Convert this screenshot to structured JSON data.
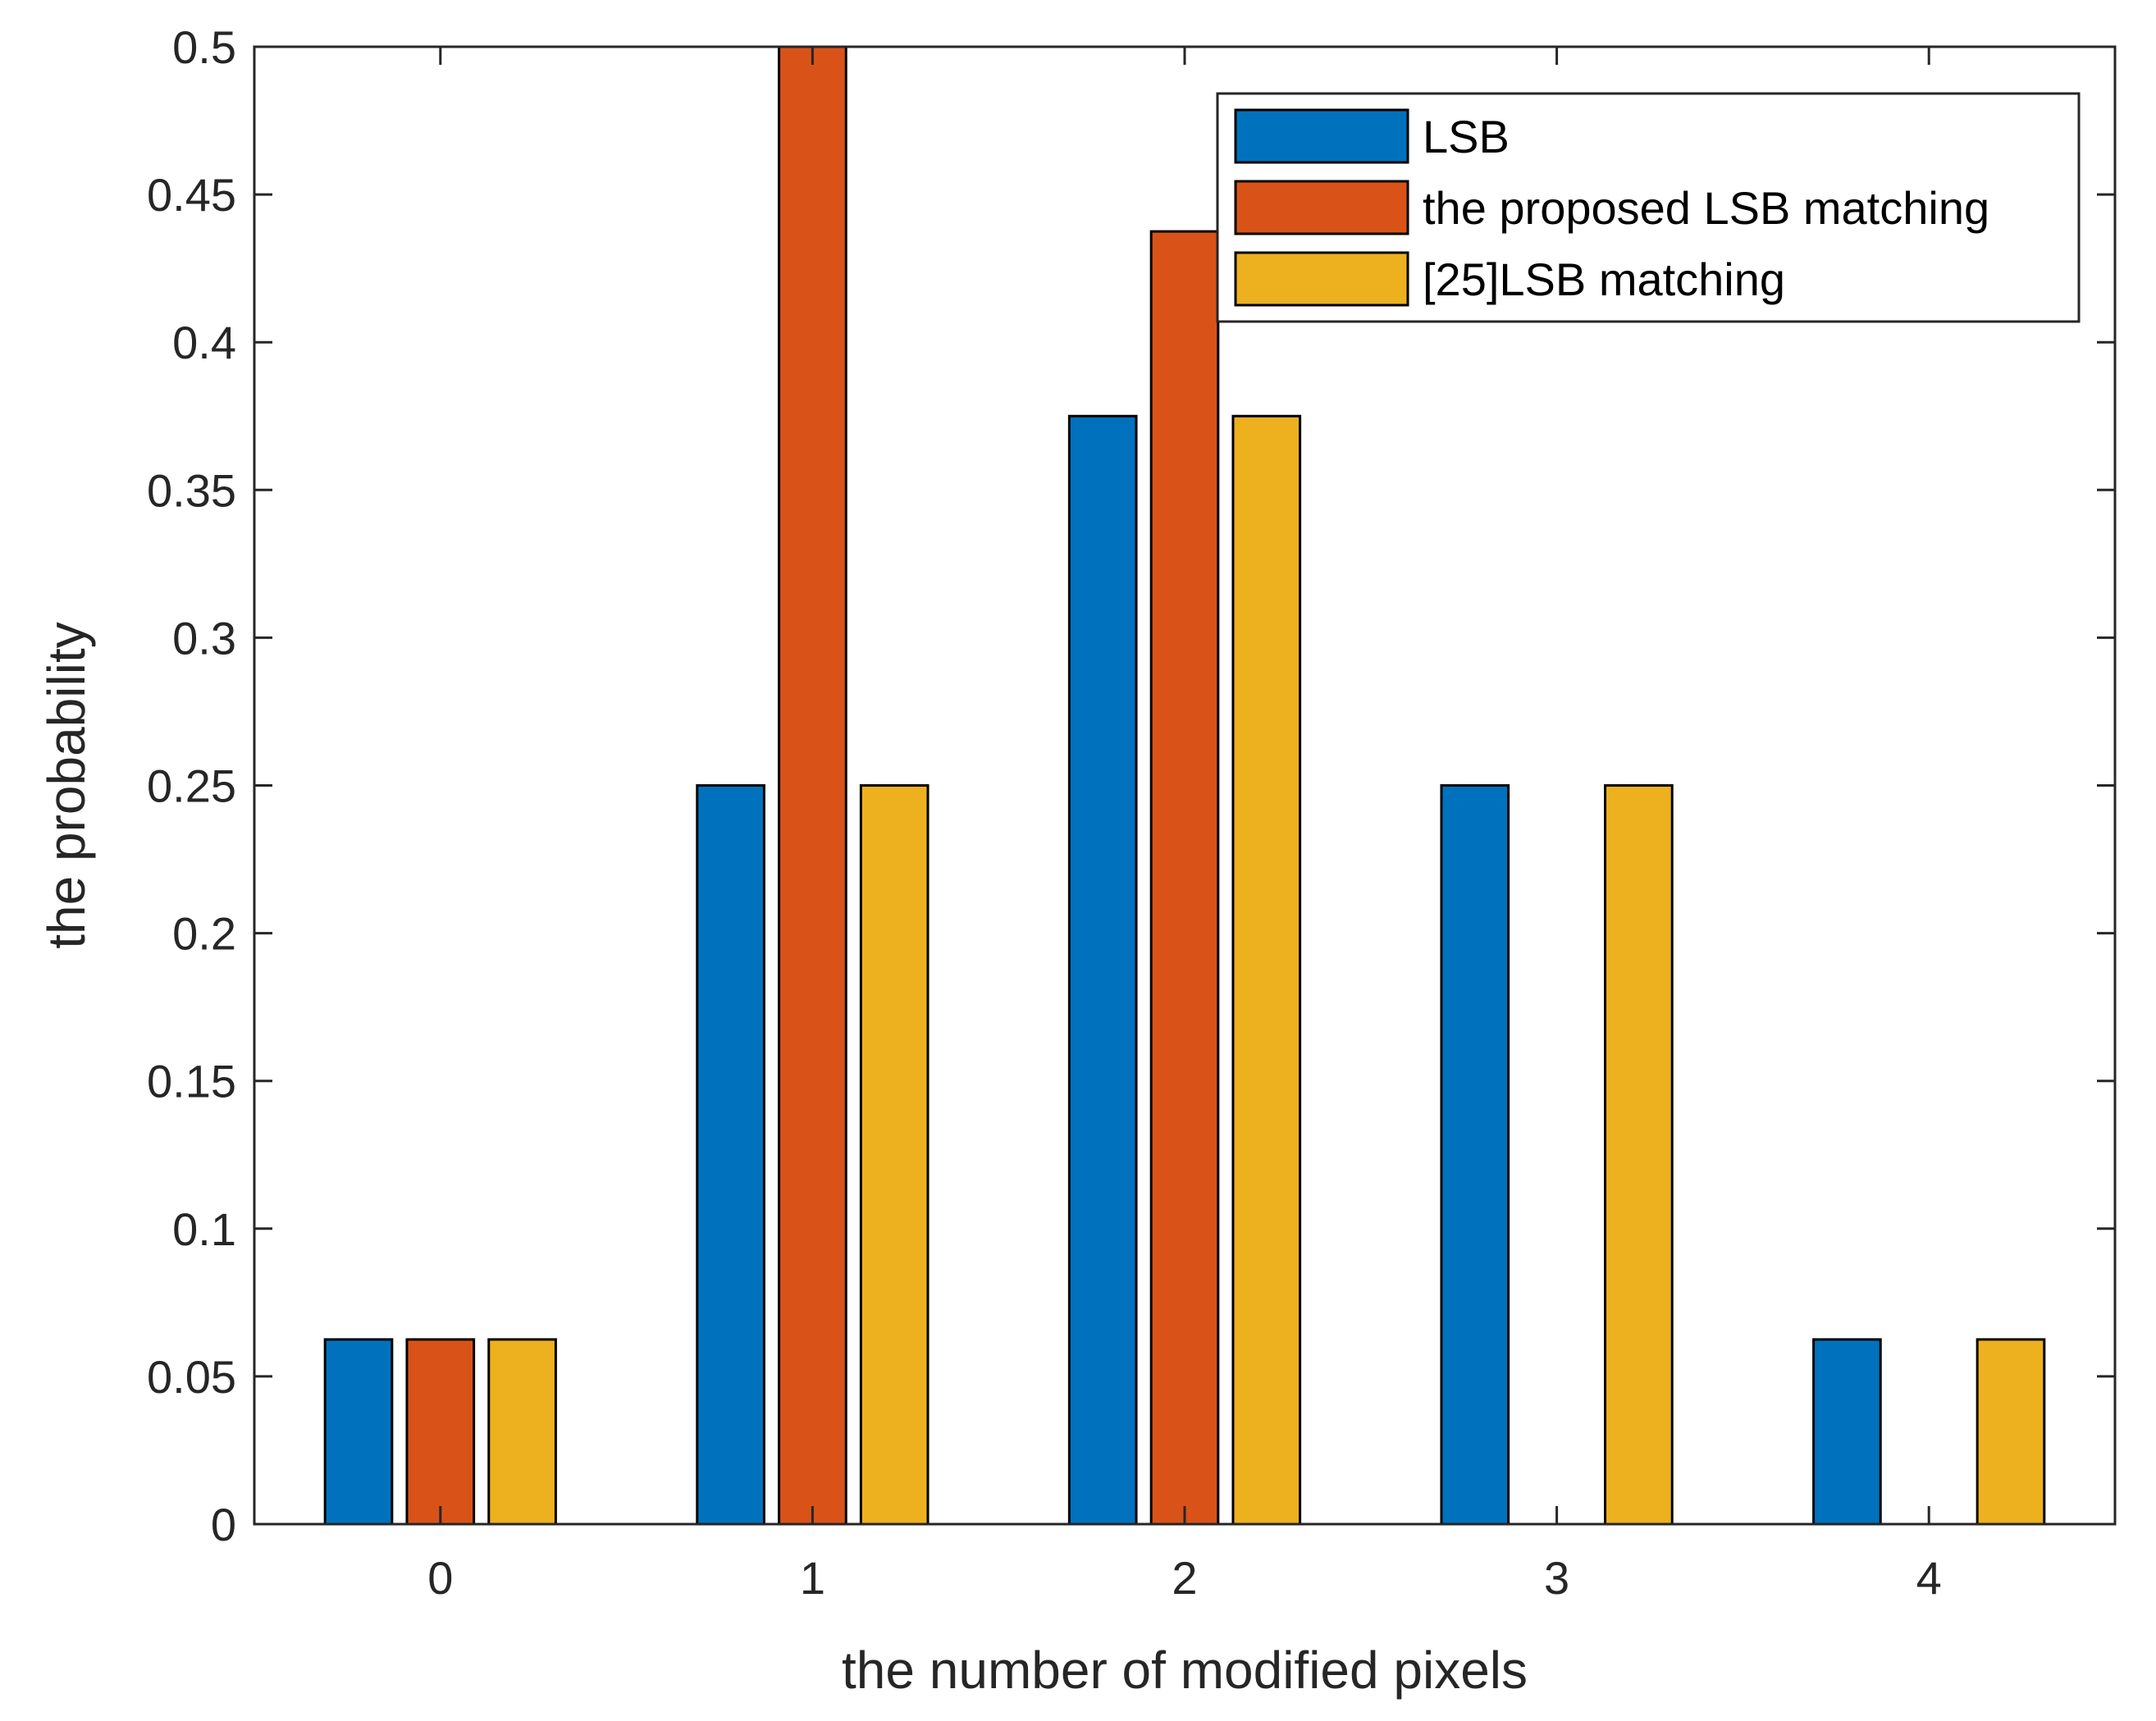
{
  "chart_data": {
    "type": "bar",
    "title": "",
    "xlabel": "the number of modified pixels",
    "ylabel": "the probability",
    "categories": [
      "0",
      "1",
      "2",
      "3",
      "4"
    ],
    "ylim": [
      0,
      0.5
    ],
    "yticks": [
      "0",
      "0.05",
      "0.1",
      "0.15",
      "0.2",
      "0.25",
      "0.3",
      "0.35",
      "0.4",
      "0.45",
      "0.5"
    ],
    "grid": false,
    "legend_position": "top-right",
    "series": [
      {
        "name": "LSB",
        "color": "#0072BD",
        "values": [
          0.0625,
          0.25,
          0.375,
          0.25,
          0.0625
        ]
      },
      {
        "name": "the proposed LSB matching",
        "color": "#D95319",
        "values": [
          0.0625,
          0.5,
          0.4375,
          0,
          0
        ]
      },
      {
        "name": "[25]LSB matching",
        "color": "#EDB120",
        "values": [
          0.0625,
          0.25,
          0.375,
          0.25,
          0.0625
        ]
      }
    ]
  }
}
